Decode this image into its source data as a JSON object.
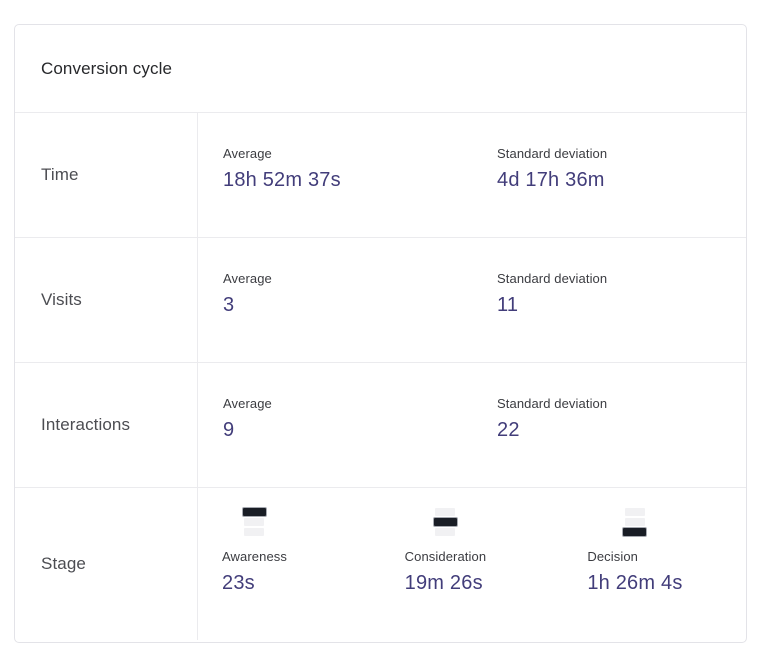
{
  "card": {
    "title": "Conversion cycle",
    "column_headers": {
      "average": "Average",
      "std_dev": "Standard deviation"
    },
    "rows": [
      {
        "label": "Time",
        "metrics": [
          {
            "label": "Average",
            "value": "18h 52m 37s"
          },
          {
            "label": "Standard deviation",
            "value": "4d 17h 36m"
          }
        ]
      },
      {
        "label": "Visits",
        "metrics": [
          {
            "label": "Average",
            "value": "3"
          },
          {
            "label": "Standard deviation",
            "value": "11"
          }
        ]
      },
      {
        "label": "Interactions",
        "metrics": [
          {
            "label": "Average",
            "value": "9"
          },
          {
            "label": "Standard deviation",
            "value": "22"
          }
        ]
      }
    ],
    "stage_row": {
      "label": "Stage",
      "stages": [
        {
          "label": "Awareness",
          "value": "23s",
          "icon": "funnel-top-active-icon",
          "active_bar": "top"
        },
        {
          "label": "Consideration",
          "value": "19m 26s",
          "icon": "funnel-middle-active-icon",
          "active_bar": "middle"
        },
        {
          "label": "Decision",
          "value": "1h 26m 4s",
          "icon": "funnel-bottom-active-icon",
          "active_bar": "bottom"
        }
      ]
    },
    "colors": {
      "value_text": "#423d7a",
      "label_text": "#3b3c41",
      "row_label_text": "#4c4d52",
      "divider": "#ebebee",
      "funnel_bar_active": "#191d25",
      "funnel_bar_inactive": "#f1f1f3"
    }
  }
}
